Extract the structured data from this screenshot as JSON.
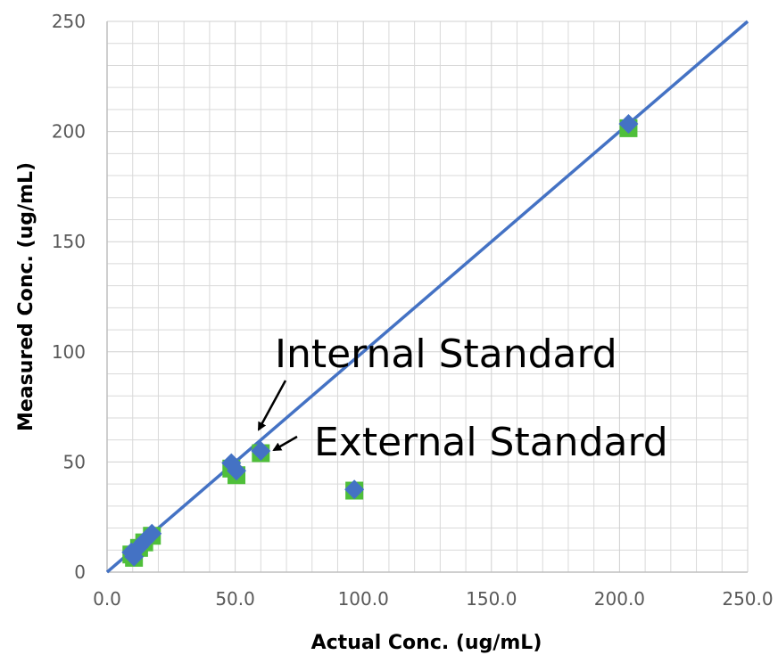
{
  "chart_data": {
    "type": "scatter",
    "title": "",
    "xlabel": "Actual Conc. (ug/mL)",
    "ylabel": "Measured Conc. (ug/mL)",
    "xlim": [
      0,
      250
    ],
    "ylim": [
      0,
      250
    ],
    "x_ticks": [
      "0.0",
      "50.0",
      "100.0",
      "150.0",
      "200.0",
      "250.0"
    ],
    "y_ticks": [
      "0",
      "50",
      "100",
      "150",
      "200",
      "250"
    ],
    "grid": true,
    "series": [
      {
        "color": "#4fbf3a",
        "marker": "square",
        "x": [
          9.5,
          10.5,
          12.5,
          14.5,
          17.5,
          48.5,
          50.5,
          60.0,
          96.5,
          203.5
        ],
        "y": [
          8.0,
          6.5,
          11.0,
          13.5,
          16.5,
          47.0,
          44.0,
          54.0,
          37.0,
          201.5
        ]
      },
      {
        "color": "#4472c4",
        "marker": "diamond",
        "x": [
          9.5,
          10.5,
          12.5,
          14.5,
          17.5,
          48.5,
          50.5,
          60.0,
          96.5,
          203.5
        ],
        "y": [
          9.0,
          7.0,
          11.5,
          14.0,
          17.5,
          49.5,
          46.0,
          55.0,
          37.5,
          203.5
        ]
      }
    ],
    "identity_line": {
      "color": "#4472c4",
      "x": [
        0,
        250
      ],
      "y": [
        0,
        250
      ]
    },
    "annotations": [
      {
        "text": "Internal Standard"
      },
      {
        "text": "External Standard"
      }
    ]
  }
}
